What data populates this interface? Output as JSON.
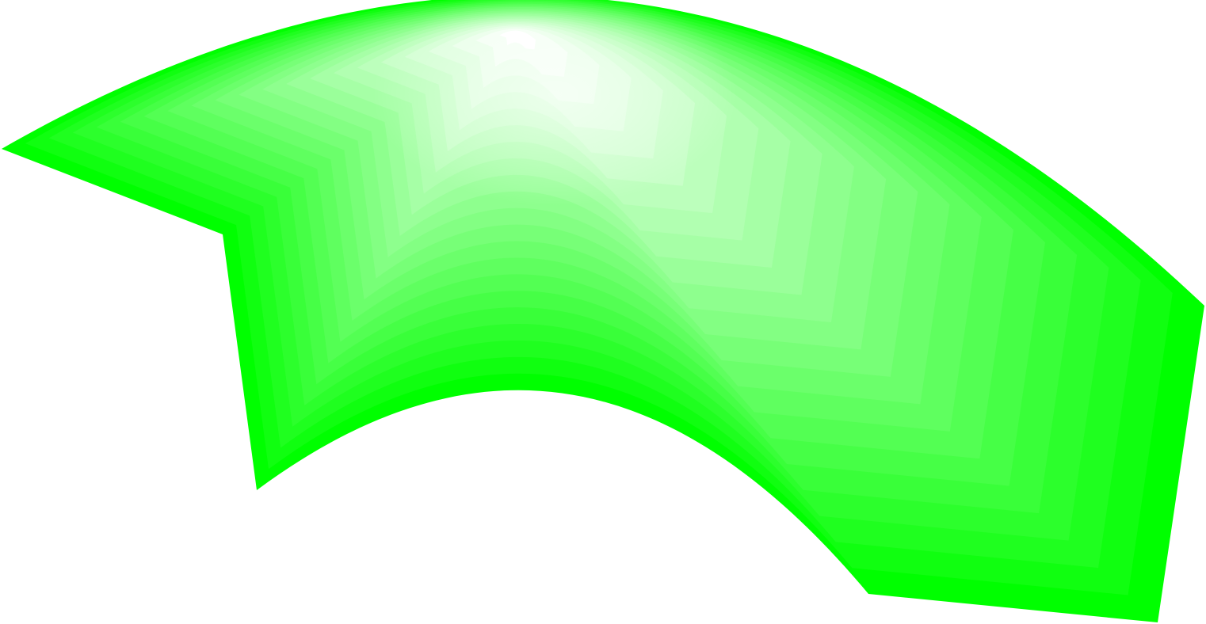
{
  "graphic": {
    "icon": "curved-arrow-icon",
    "colors": {
      "outer": "#00ff00",
      "inner": "#ffffff",
      "background": "#ffffff"
    }
  }
}
